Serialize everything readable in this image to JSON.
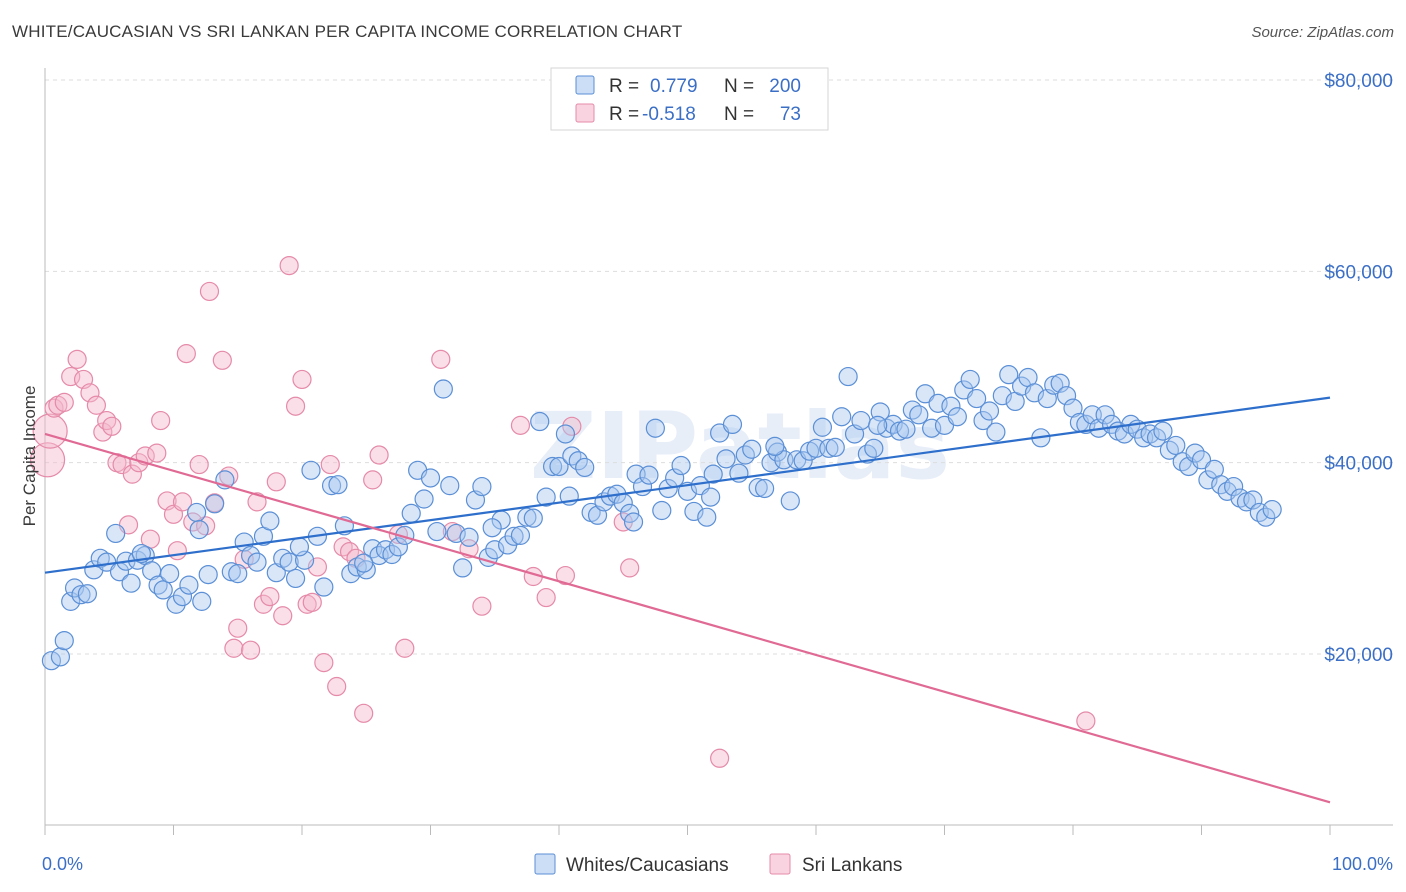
{
  "header": {
    "title": "WHITE/CAUCASIAN VS SRI LANKAN PER CAPITA INCOME CORRELATION CHART",
    "source": "Source: ZipAtlas.com"
  },
  "watermark": "ZIPatlas",
  "colors": {
    "blue_fill": "#a8c8f0",
    "blue_stroke": "#5b8fd6",
    "blue_line": "#2f6fcc",
    "pink_fill": "#f5b8cc",
    "pink_stroke": "#e58aa8",
    "pink_line": "#e06a94",
    "tick_text": "#3b6fc6",
    "grid": "#dddddd"
  },
  "legend": {
    "rows": [
      {
        "r_label": "R =",
        "r_value": "0.779",
        "n_label": "N =",
        "n_value": "200",
        "color": "blue"
      },
      {
        "r_label": "R =",
        "r_value": "-0.518",
        "n_label": "N =",
        "n_value": "73",
        "color": "pink"
      }
    ]
  },
  "bottom_legend": [
    {
      "label": "Whites/Caucasians",
      "color": "blue"
    },
    {
      "label": "Sri Lankans",
      "color": "pink"
    }
  ],
  "chart_data": {
    "type": "scatter",
    "title": "WHITE/CAUCASIAN VS SRI LANKAN PER CAPITA INCOME CORRELATION CHART",
    "xlabel": "",
    "ylabel": "Per Capita Income",
    "xlim": [
      0,
      100
    ],
    "ylim": [
      2000,
      82000
    ],
    "x_tick_labels": [
      {
        "value": 0,
        "label": "0.0%"
      },
      {
        "value": 100,
        "label": "100.0%"
      }
    ],
    "y_tick_labels": [
      {
        "value": 20000,
        "label": "$20,000"
      },
      {
        "value": 40000,
        "label": "$40,000"
      },
      {
        "value": 60000,
        "label": "$60,000"
      },
      {
        "value": 80000,
        "label": "$80,000"
      }
    ],
    "grid": true,
    "legend_position": "top-center",
    "series": [
      {
        "name": "Whites/Caucasians",
        "color": "blue",
        "trend": {
          "x": [
            0,
            100
          ],
          "y": [
            28500,
            46800
          ]
        },
        "points": [
          [
            0.5,
            19300
          ],
          [
            1.2,
            19700
          ],
          [
            1.5,
            21400
          ],
          [
            2.0,
            25500
          ],
          [
            2.3,
            26900
          ],
          [
            2.8,
            26200
          ],
          [
            3.3,
            26300
          ],
          [
            3.8,
            28800
          ],
          [
            4.3,
            30000
          ],
          [
            4.8,
            29600
          ],
          [
            5.5,
            32600
          ],
          [
            5.8,
            28600
          ],
          [
            6.3,
            29700
          ],
          [
            6.7,
            27400
          ],
          [
            7.2,
            29800
          ],
          [
            7.8,
            30300
          ],
          [
            8.3,
            28700
          ],
          [
            8.8,
            27200
          ],
          [
            9.2,
            26700
          ],
          [
            9.7,
            28400
          ],
          [
            10.2,
            25200
          ],
          [
            10.7,
            26000
          ],
          [
            11.2,
            27200
          ],
          [
            11.8,
            34800
          ],
          [
            12.2,
            25500
          ],
          [
            12.7,
            28300
          ],
          [
            13.2,
            35700
          ],
          [
            14.0,
            38200
          ],
          [
            14.5,
            28600
          ],
          [
            15.0,
            28400
          ],
          [
            15.5,
            31700
          ],
          [
            16.0,
            30300
          ],
          [
            16.5,
            29600
          ],
          [
            17.0,
            32300
          ],
          [
            17.5,
            33900
          ],
          [
            18.0,
            28500
          ],
          [
            18.5,
            30000
          ],
          [
            19.0,
            29600
          ],
          [
            19.5,
            27900
          ],
          [
            20.2,
            29800
          ],
          [
            20.7,
            39200
          ],
          [
            21.2,
            32300
          ],
          [
            21.7,
            27000
          ],
          [
            22.3,
            37600
          ],
          [
            22.8,
            37700
          ],
          [
            23.3,
            33400
          ],
          [
            23.8,
            28400
          ],
          [
            24.3,
            29100
          ],
          [
            25.0,
            28800
          ],
          [
            25.5,
            31000
          ],
          [
            26.0,
            30300
          ],
          [
            26.5,
            30900
          ],
          [
            27.0,
            30400
          ],
          [
            27.5,
            31200
          ],
          [
            28.0,
            32400
          ],
          [
            28.5,
            34700
          ],
          [
            29.0,
            39200
          ],
          [
            29.5,
            36200
          ],
          [
            30.0,
            38400
          ],
          [
            30.5,
            32800
          ],
          [
            31.0,
            47700
          ],
          [
            31.5,
            37600
          ],
          [
            32.0,
            32600
          ],
          [
            32.5,
            29000
          ],
          [
            33.0,
            32200
          ],
          [
            33.5,
            36100
          ],
          [
            34.0,
            37500
          ],
          [
            34.5,
            30100
          ],
          [
            35.0,
            30900
          ],
          [
            35.5,
            34000
          ],
          [
            36.0,
            31400
          ],
          [
            36.5,
            32300
          ],
          [
            37.0,
            32400
          ],
          [
            37.5,
            34300
          ],
          [
            38.0,
            34200
          ],
          [
            38.5,
            44300
          ],
          [
            39.0,
            36400
          ],
          [
            39.5,
            39600
          ],
          [
            40.0,
            39600
          ],
          [
            40.5,
            43000
          ],
          [
            41.0,
            40700
          ],
          [
            41.5,
            40200
          ],
          [
            42.0,
            39500
          ],
          [
            42.5,
            34800
          ],
          [
            43.0,
            34500
          ],
          [
            43.5,
            35900
          ],
          [
            44.0,
            36500
          ],
          [
            44.5,
            36700
          ],
          [
            45.0,
            35800
          ],
          [
            45.5,
            34700
          ],
          [
            46.0,
            38800
          ],
          [
            46.5,
            37500
          ],
          [
            47.0,
            38700
          ],
          [
            47.5,
            43600
          ],
          [
            48.0,
            35000
          ],
          [
            48.5,
            37300
          ],
          [
            49.0,
            38400
          ],
          [
            49.5,
            39700
          ],
          [
            50.0,
            37000
          ],
          [
            50.5,
            34900
          ],
          [
            51.0,
            37600
          ],
          [
            51.5,
            34300
          ],
          [
            52.0,
            38800
          ],
          [
            52.5,
            43100
          ],
          [
            53.0,
            40400
          ],
          [
            53.5,
            44000
          ],
          [
            54.0,
            38900
          ],
          [
            54.5,
            40800
          ],
          [
            55.0,
            41400
          ],
          [
            55.5,
            37400
          ],
          [
            56.0,
            37300
          ],
          [
            56.5,
            40000
          ],
          [
            57.0,
            41100
          ],
          [
            57.5,
            40300
          ],
          [
            58.0,
            36000
          ],
          [
            58.5,
            40300
          ],
          [
            59.0,
            40200
          ],
          [
            59.5,
            41200
          ],
          [
            60.0,
            41500
          ],
          [
            60.5,
            43700
          ],
          [
            61.0,
            41500
          ],
          [
            61.5,
            41600
          ],
          [
            62.0,
            44800
          ],
          [
            62.5,
            49000
          ],
          [
            63.0,
            43000
          ],
          [
            63.5,
            44400
          ],
          [
            64.0,
            40900
          ],
          [
            64.5,
            41500
          ],
          [
            65.0,
            45300
          ],
          [
            65.5,
            43600
          ],
          [
            66.0,
            44000
          ],
          [
            66.5,
            43300
          ],
          [
            67.0,
            43500
          ],
          [
            67.5,
            45500
          ],
          [
            68.0,
            45000
          ],
          [
            68.5,
            47200
          ],
          [
            69.0,
            43600
          ],
          [
            69.5,
            46200
          ],
          [
            70.0,
            43900
          ],
          [
            70.5,
            45900
          ],
          [
            71.0,
            44800
          ],
          [
            71.5,
            47600
          ],
          [
            72.0,
            48700
          ],
          [
            72.5,
            46700
          ],
          [
            73.0,
            44400
          ],
          [
            73.5,
            45400
          ],
          [
            74.0,
            43200
          ],
          [
            74.5,
            47000
          ],
          [
            75.0,
            49200
          ],
          [
            75.5,
            46400
          ],
          [
            76.0,
            48000
          ],
          [
            76.5,
            48900
          ],
          [
            77.0,
            47300
          ],
          [
            77.5,
            42600
          ],
          [
            78.0,
            46700
          ],
          [
            78.5,
            48100
          ],
          [
            79.0,
            48300
          ],
          [
            79.5,
            47000
          ],
          [
            80.0,
            45700
          ],
          [
            80.5,
            44200
          ],
          [
            81.0,
            44000
          ],
          [
            81.5,
            45000
          ],
          [
            82.0,
            43600
          ],
          [
            82.5,
            45000
          ],
          [
            83.0,
            44000
          ],
          [
            83.5,
            43300
          ],
          [
            84.0,
            43000
          ],
          [
            84.5,
            44000
          ],
          [
            85.0,
            43500
          ],
          [
            85.5,
            42600
          ],
          [
            86.0,
            43000
          ],
          [
            86.5,
            42600
          ],
          [
            87.0,
            43300
          ],
          [
            87.5,
            41300
          ],
          [
            88.0,
            41800
          ],
          [
            88.5,
            40100
          ],
          [
            89.0,
            39600
          ],
          [
            89.5,
            41000
          ],
          [
            90.0,
            40300
          ],
          [
            90.5,
            38200
          ],
          [
            91.0,
            39300
          ],
          [
            91.5,
            37700
          ],
          [
            92.0,
            37000
          ],
          [
            92.5,
            37500
          ],
          [
            93.0,
            36300
          ],
          [
            93.5,
            35900
          ],
          [
            94.0,
            36100
          ],
          [
            94.5,
            34800
          ],
          [
            95.0,
            34300
          ],
          [
            95.5,
            35100
          ],
          [
            7.5,
            30500
          ],
          [
            12.0,
            33000
          ],
          [
            19.8,
            31200
          ],
          [
            24.8,
            29500
          ],
          [
            34.8,
            33200
          ],
          [
            40.8,
            36500
          ],
          [
            45.8,
            33800
          ],
          [
            51.8,
            36400
          ],
          [
            56.8,
            41700
          ],
          [
            64.8,
            43900
          ]
        ]
      },
      {
        "name": "Sri Lankans",
        "color": "pink",
        "trend": {
          "x": [
            0,
            100
          ],
          "y": [
            43000,
            4500
          ]
        },
        "points": [
          [
            0.2,
            40300
          ],
          [
            0.4,
            43300
          ],
          [
            0.7,
            45700
          ],
          [
            1.0,
            46000
          ],
          [
            1.5,
            46300
          ],
          [
            2.0,
            49000
          ],
          [
            2.5,
            50800
          ],
          [
            3.0,
            48700
          ],
          [
            3.5,
            47300
          ],
          [
            4.0,
            46000
          ],
          [
            4.5,
            43200
          ],
          [
            4.8,
            44400
          ],
          [
            5.2,
            43800
          ],
          [
            5.6,
            40000
          ],
          [
            6.0,
            39800
          ],
          [
            6.5,
            33500
          ],
          [
            6.8,
            38800
          ],
          [
            7.3,
            40000
          ],
          [
            7.8,
            40700
          ],
          [
            8.2,
            32000
          ],
          [
            8.7,
            41000
          ],
          [
            9.0,
            44400
          ],
          [
            9.5,
            36000
          ],
          [
            10.0,
            34600
          ],
          [
            10.3,
            30800
          ],
          [
            10.7,
            35900
          ],
          [
            11.0,
            51400
          ],
          [
            11.5,
            33800
          ],
          [
            12.0,
            39800
          ],
          [
            12.5,
            33400
          ],
          [
            12.8,
            57900
          ],
          [
            13.2,
            35800
          ],
          [
            13.8,
            50700
          ],
          [
            14.3,
            38600
          ],
          [
            14.7,
            20600
          ],
          [
            15.0,
            22700
          ],
          [
            15.5,
            29900
          ],
          [
            16.0,
            20400
          ],
          [
            16.5,
            35900
          ],
          [
            17.0,
            25200
          ],
          [
            17.5,
            26000
          ],
          [
            18.0,
            38000
          ],
          [
            18.5,
            24000
          ],
          [
            19.0,
            60600
          ],
          [
            19.5,
            45900
          ],
          [
            20.0,
            48700
          ],
          [
            20.4,
            25200
          ],
          [
            20.8,
            25400
          ],
          [
            21.2,
            29100
          ],
          [
            21.7,
            19100
          ],
          [
            22.2,
            39800
          ],
          [
            22.7,
            16600
          ],
          [
            23.2,
            31200
          ],
          [
            23.7,
            30700
          ],
          [
            24.2,
            30000
          ],
          [
            24.8,
            13800
          ],
          [
            25.5,
            38200
          ],
          [
            26.0,
            40800
          ],
          [
            27.5,
            32500
          ],
          [
            28.0,
            20600
          ],
          [
            30.8,
            50800
          ],
          [
            31.7,
            32800
          ],
          [
            33.0,
            31000
          ],
          [
            34.0,
            25000
          ],
          [
            37.0,
            43900
          ],
          [
            38.0,
            28100
          ],
          [
            39.0,
            25900
          ],
          [
            40.5,
            28200
          ],
          [
            45.0,
            33800
          ],
          [
            45.5,
            29000
          ],
          [
            52.5,
            9100
          ],
          [
            81.0,
            13000
          ],
          [
            41.0,
            43800
          ]
        ]
      }
    ]
  }
}
